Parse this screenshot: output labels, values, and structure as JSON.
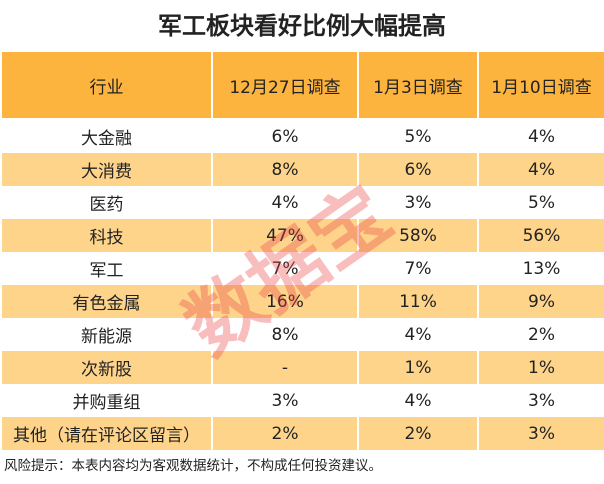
{
  "header": {
    "title": "军工板块看好比例大幅提高"
  },
  "table": {
    "columns": [
      "行业",
      "12月27日调查",
      "1月3日调查",
      "1月10日调查"
    ],
    "rows": [
      [
        "大金融",
        "6%",
        "5%",
        "4%"
      ],
      [
        "大消费",
        "8%",
        "6%",
        "4%"
      ],
      [
        "医药",
        "4%",
        "3%",
        "5%"
      ],
      [
        "科技",
        "47%",
        "58%",
        "56%"
      ],
      [
        "军工",
        "7%",
        "7%",
        "13%"
      ],
      [
        "有色金属",
        "16%",
        "11%",
        "9%"
      ],
      [
        "新能源",
        "8%",
        "4%",
        "2%"
      ],
      [
        "次新股",
        "-",
        "1%",
        "1%"
      ],
      [
        "并购重组",
        "3%",
        "4%",
        "3%"
      ],
      [
        "其他（请在评论区留言）",
        "2%",
        "2%",
        "3%"
      ]
    ]
  },
  "footer": "风险提示：本表内容均为客观数据统计，不构成任何投资建议。",
  "watermark": "数据宝"
}
